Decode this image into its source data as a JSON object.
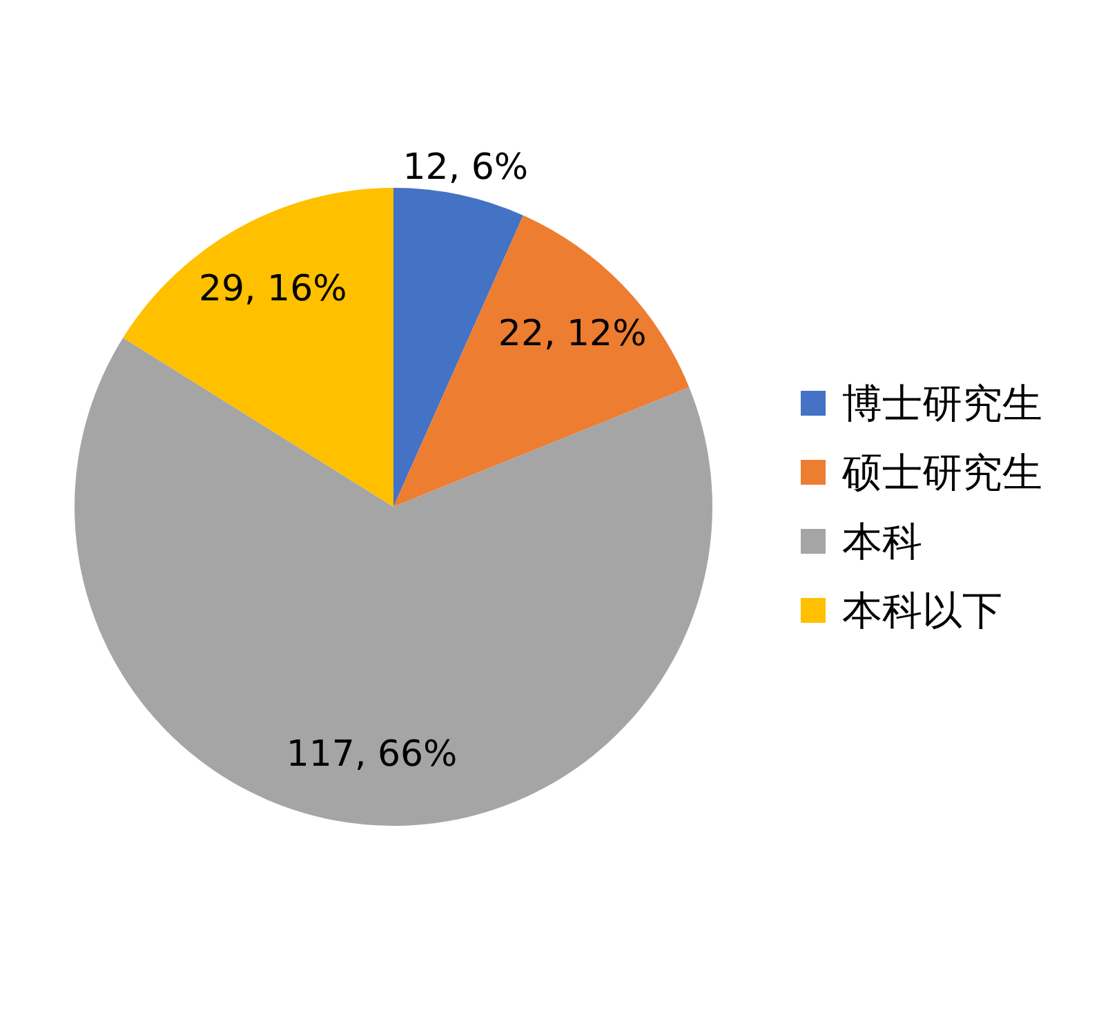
{
  "chart_data": {
    "type": "pie",
    "categories": [
      "博士研究生",
      "硕士研究生",
      "本科",
      "本科以下"
    ],
    "values": [
      12,
      22,
      117,
      29
    ],
    "colors": [
      "#4472c4",
      "#ed7d31",
      "#a5a5a5",
      "#ffc000"
    ],
    "value_labels": [
      "12, 6%",
      "22, 12%",
      "117, 66%",
      "29, 16%"
    ],
    "legend": "right"
  }
}
